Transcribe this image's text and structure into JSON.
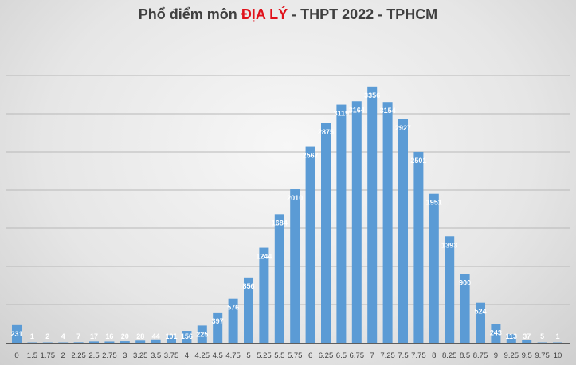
{
  "chart_data": {
    "type": "bar",
    "title": {
      "prefix": "Phổ điểm môn ",
      "highlight": "ĐỊA LÝ",
      "suffix": " - THPT 2022 - TPHCM"
    },
    "categories": [
      "0",
      "1.5",
      "1.75",
      "2",
      "2.25",
      "2.5",
      "2.75",
      "3",
      "3.25",
      "3.5",
      "3.75",
      "4",
      "4.25",
      "4.5",
      "4.75",
      "5",
      "5.25",
      "5.5",
      "5.75",
      "6",
      "6.25",
      "6.5",
      "6.75",
      "7",
      "7.25",
      "7.5",
      "7.75",
      "8",
      "8.25",
      "8.5",
      "8.75",
      "9",
      "9.25",
      "9.5",
      "9.75",
      "10"
    ],
    "values": [
      231,
      1,
      2,
      4,
      7,
      17,
      16,
      20,
      28,
      44,
      101,
      156,
      225,
      397,
      576,
      856,
      1244,
      1684,
      2010,
      2567,
      2875,
      3119,
      3164,
      3356,
      3154,
      2927,
      2501,
      1951,
      1393,
      900,
      524,
      243,
      113,
      37,
      5,
      1
    ],
    "ylim": [
      0,
      3500
    ],
    "grid": true,
    "colors": {
      "bar": "#5b9bd5",
      "highlight": "#e0121b",
      "label": "#ffffff"
    }
  }
}
